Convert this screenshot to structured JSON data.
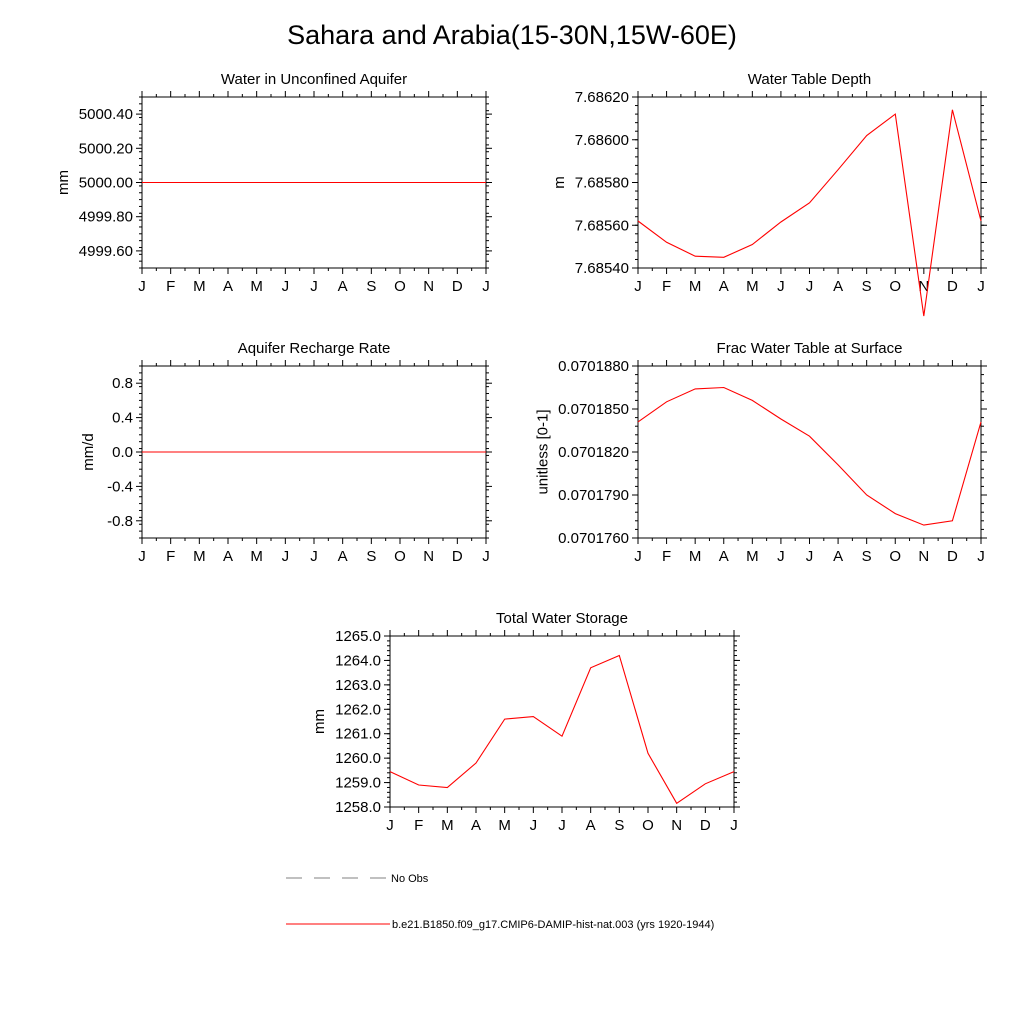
{
  "title": "Sahara and Arabia(15-30N,15W-60E)",
  "colors": {
    "series": "#ff0000",
    "obs": "#808080",
    "axis": "#000000"
  },
  "legend": {
    "obs_label": "No Obs",
    "model_label": "b.e21.B1850.f09_g17.CMIP6-DAMIP-hist-nat.003 (yrs 1920-1944)"
  },
  "chart_data": [
    {
      "id": "aquifer-water",
      "type": "line",
      "title": "Water in Unconfined Aquifer",
      "ylabel": "mm",
      "xlabel": "",
      "x": [
        "J",
        "F",
        "M",
        "A",
        "M",
        "J",
        "J",
        "A",
        "S",
        "O",
        "N",
        "D",
        "J"
      ],
      "ylim": [
        4999.5,
        5000.5
      ],
      "yticks": [
        4999.6,
        4999.8,
        5000.0,
        5000.2,
        5000.4
      ],
      "yticklabels": [
        "4999.60",
        "4999.80",
        "5000.00",
        "5000.20",
        "5000.40"
      ],
      "series": [
        {
          "values": [
            5000.0,
            5000.0,
            5000.0,
            5000.0,
            5000.0,
            5000.0,
            5000.0,
            5000.0,
            5000.0,
            5000.0,
            5000.0,
            5000.0,
            5000.0
          ]
        }
      ]
    },
    {
      "id": "water-table-depth",
      "type": "line",
      "title": "Water Table Depth",
      "ylabel": "m",
      "xlabel": "",
      "x": [
        "J",
        "F",
        "M",
        "A",
        "M",
        "J",
        "J",
        "A",
        "S",
        "O",
        "N",
        "D",
        "J"
      ],
      "ylim": [
        7.6854,
        7.6862
      ],
      "yticks": [
        7.6854,
        7.6856,
        7.6858,
        7.686,
        7.6862
      ],
      "yticklabels": [
        "7.68540",
        "7.68560",
        "7.68580",
        "7.68600",
        "7.68620"
      ],
      "series": [
        {
          "values": [
            7.68562,
            7.68552,
            7.685455,
            7.68545,
            7.68551,
            7.685615,
            7.685705,
            7.68586,
            7.68602,
            7.68612,
            7.685175,
            7.68614,
            7.68562
          ]
        }
      ]
    },
    {
      "id": "recharge-rate",
      "type": "line",
      "title": "Aquifer Recharge Rate",
      "ylabel": "mm/d",
      "xlabel": "",
      "x": [
        "J",
        "F",
        "M",
        "A",
        "M",
        "J",
        "J",
        "A",
        "S",
        "O",
        "N",
        "D",
        "J"
      ],
      "ylim": [
        -1.0,
        1.0
      ],
      "yticks": [
        -0.8,
        -0.4,
        0.0,
        0.4,
        0.8
      ],
      "yticklabels": [
        "-0.8",
        "-0.4",
        "0.0",
        "0.4",
        "0.8"
      ],
      "series": [
        {
          "values": [
            0,
            0,
            0,
            0,
            0,
            0,
            0,
            0,
            0,
            0,
            0,
            0,
            0
          ]
        }
      ]
    },
    {
      "id": "frac-water-table",
      "type": "line",
      "title": "Frac Water Table at Surface",
      "ylabel": "unitless [0-1]",
      "xlabel": "",
      "x": [
        "J",
        "F",
        "M",
        "A",
        "M",
        "J",
        "J",
        "A",
        "S",
        "O",
        "N",
        "D",
        "J"
      ],
      "ylim": [
        0.070176,
        0.070188
      ],
      "yticks": [
        0.070176,
        0.070179,
        0.070182,
        0.070185,
        0.070188
      ],
      "yticklabels": [
        "0.0701760",
        "0.0701790",
        "0.0701820",
        "0.0701850",
        "0.0701880"
      ],
      "series": [
        {
          "values": [
            0.0701841,
            0.0701855,
            0.0701864,
            0.0701865,
            0.0701856,
            0.0701843,
            0.0701831,
            0.0701811,
            0.070179,
            0.0701777,
            0.0701769,
            0.0701772,
            0.0701841
          ]
        }
      ]
    },
    {
      "id": "total-water-storage",
      "type": "line",
      "title": "Total Water Storage",
      "ylabel": "mm",
      "xlabel": "",
      "x": [
        "J",
        "F",
        "M",
        "A",
        "M",
        "J",
        "J",
        "A",
        "S",
        "O",
        "N",
        "D",
        "J"
      ],
      "ylim": [
        1258.0,
        1265.0
      ],
      "yticks": [
        1258,
        1259,
        1260,
        1261,
        1262,
        1263,
        1264,
        1265
      ],
      "yticklabels": [
        "1258.0",
        "1259.0",
        "1260.0",
        "1261.0",
        "1262.0",
        "1263.0",
        "1264.0",
        "1265.0"
      ],
      "series": [
        {
          "values": [
            1259.45,
            1258.9,
            1258.8,
            1259.8,
            1261.6,
            1261.7,
            1260.9,
            1263.7,
            1264.2,
            1260.2,
            1258.15,
            1258.95,
            1259.45
          ]
        }
      ]
    }
  ]
}
